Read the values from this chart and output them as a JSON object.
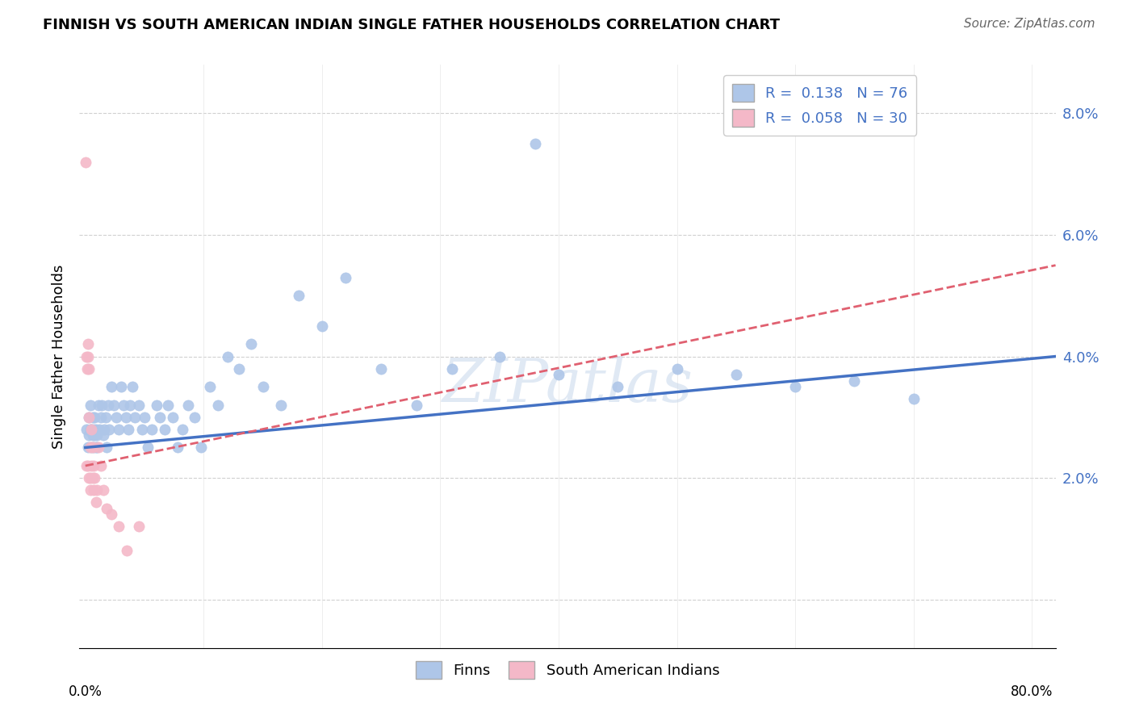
{
  "title": "FINNISH VS SOUTH AMERICAN INDIAN SINGLE FATHER HOUSEHOLDS CORRELATION CHART",
  "source": "Source: ZipAtlas.com",
  "ylabel": "Single Father Households",
  "y_ticks": [
    0.0,
    0.02,
    0.04,
    0.06,
    0.08
  ],
  "y_tick_labels": [
    "",
    "2.0%",
    "4.0%",
    "6.0%",
    "8.0%"
  ],
  "xlim": [
    -0.005,
    0.82
  ],
  "ylim": [
    -0.008,
    0.088
  ],
  "finn_r": 0.138,
  "finn_n": 76,
  "sai_r": 0.058,
  "sai_n": 30,
  "finn_color": "#aec6e8",
  "sai_color": "#f4b8c8",
  "finn_line_color": "#4472c4",
  "sai_line_color": "#e06070",
  "finns_x": [
    0.001,
    0.002,
    0.003,
    0.003,
    0.004,
    0.004,
    0.005,
    0.005,
    0.006,
    0.006,
    0.007,
    0.007,
    0.008,
    0.008,
    0.009,
    0.009,
    0.01,
    0.01,
    0.011,
    0.012,
    0.013,
    0.014,
    0.015,
    0.016,
    0.017,
    0.018,
    0.019,
    0.02,
    0.022,
    0.024,
    0.026,
    0.028,
    0.03,
    0.032,
    0.034,
    0.036,
    0.038,
    0.04,
    0.042,
    0.045,
    0.048,
    0.05,
    0.053,
    0.056,
    0.06,
    0.063,
    0.067,
    0.07,
    0.074,
    0.078,
    0.082,
    0.087,
    0.092,
    0.098,
    0.105,
    0.112,
    0.12,
    0.13,
    0.14,
    0.15,
    0.165,
    0.18,
    0.2,
    0.22,
    0.25,
    0.28,
    0.31,
    0.35,
    0.4,
    0.45,
    0.5,
    0.55,
    0.6,
    0.65,
    0.7,
    0.38
  ],
  "finns_y": [
    0.028,
    0.025,
    0.03,
    0.027,
    0.028,
    0.032,
    0.025,
    0.028,
    0.03,
    0.027,
    0.025,
    0.028,
    0.027,
    0.03,
    0.025,
    0.028,
    0.027,
    0.025,
    0.032,
    0.028,
    0.03,
    0.032,
    0.027,
    0.028,
    0.03,
    0.025,
    0.032,
    0.028,
    0.035,
    0.032,
    0.03,
    0.028,
    0.035,
    0.032,
    0.03,
    0.028,
    0.032,
    0.035,
    0.03,
    0.032,
    0.028,
    0.03,
    0.025,
    0.028,
    0.032,
    0.03,
    0.028,
    0.032,
    0.03,
    0.025,
    0.028,
    0.032,
    0.03,
    0.025,
    0.035,
    0.032,
    0.04,
    0.038,
    0.042,
    0.035,
    0.032,
    0.05,
    0.045,
    0.053,
    0.038,
    0.032,
    0.038,
    0.04,
    0.037,
    0.035,
    0.038,
    0.037,
    0.035,
    0.036,
    0.033,
    0.075
  ],
  "sai_x": [
    0.0005,
    0.001,
    0.001,
    0.0015,
    0.002,
    0.002,
    0.002,
    0.003,
    0.003,
    0.003,
    0.004,
    0.004,
    0.004,
    0.005,
    0.005,
    0.006,
    0.006,
    0.007,
    0.007,
    0.008,
    0.009,
    0.01,
    0.011,
    0.013,
    0.015,
    0.018,
    0.022,
    0.028,
    0.035,
    0.045
  ],
  "sai_y": [
    0.072,
    0.04,
    0.022,
    0.038,
    0.042,
    0.04,
    0.022,
    0.038,
    0.03,
    0.02,
    0.018,
    0.025,
    0.02,
    0.028,
    0.022,
    0.025,
    0.02,
    0.022,
    0.018,
    0.02,
    0.016,
    0.018,
    0.025,
    0.022,
    0.018,
    0.015,
    0.014,
    0.012,
    0.008,
    0.012
  ],
  "finn_trend_x": [
    0.0,
    0.82
  ],
  "finn_trend_y": [
    0.025,
    0.04
  ],
  "sai_trend_x": [
    0.0,
    0.82
  ],
  "sai_trend_y": [
    0.022,
    0.055
  ]
}
